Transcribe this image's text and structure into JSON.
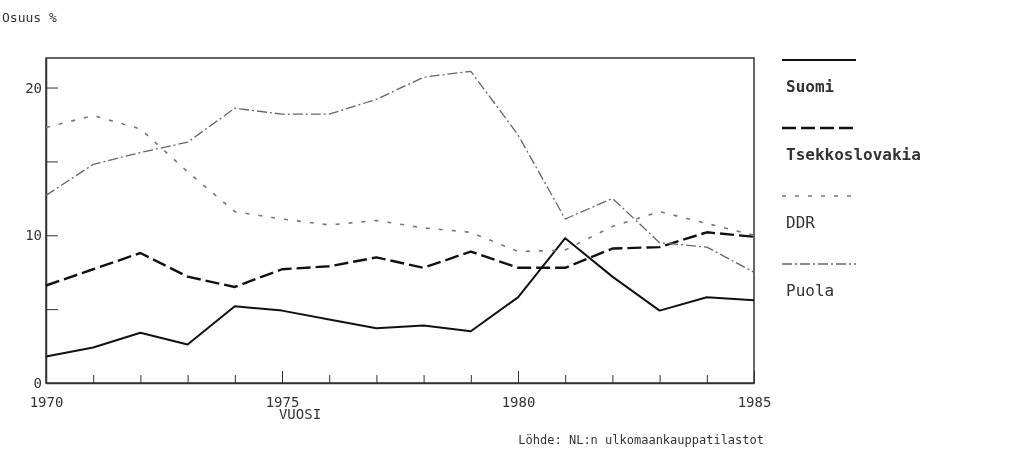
{
  "chart_data": {
    "type": "line",
    "ylabel": "Osuus %",
    "xlabel": "VUOSI",
    "annotations": [
      "Löhde: NL:n ulkomaankauppatilastot"
    ],
    "x": [
      1970,
      1971,
      1972,
      1973,
      1974,
      1975,
      1976,
      1977,
      1978,
      1979,
      1980,
      1981,
      1982,
      1983,
      1984,
      1985
    ],
    "xlim": [
      1970,
      1985
    ],
    "xticks": [
      1970,
      {
        "value": 1971,
        "label": null
      },
      {
        "value": 1972,
        "label": null
      },
      {
        "value": 1973,
        "label": null
      },
      {
        "value": 1974,
        "label": null
      },
      1975,
      {
        "value": 1976,
        "label": null
      },
      {
        "value": 1977,
        "label": null
      },
      {
        "value": 1978,
        "label": null
      },
      {
        "value": 1979,
        "label": null
      },
      1980,
      {
        "value": 1981,
        "label": null
      },
      {
        "value": 1982,
        "label": null
      },
      {
        "value": 1983,
        "label": null
      },
      {
        "value": 1984,
        "label": null
      },
      1985
    ],
    "ylim": [
      0,
      22
    ],
    "yticks": [
      0,
      {
        "value": 5,
        "label": null
      },
      10,
      {
        "value": 15,
        "label": null
      },
      20
    ],
    "legend": "right",
    "grid": false,
    "marker": "none",
    "series": [
      {
        "name": "Suomi",
        "color": "#111111",
        "line_style": "solid",
        "values": [
          1.8,
          2.4,
          3.4,
          2.6,
          5.2,
          4.9,
          4.3,
          3.7,
          3.9,
          3.5,
          5.8,
          9.8,
          7.2,
          4.9,
          5.8,
          5.6
        ]
      },
      {
        "name": "Tsekkoslovakia",
        "color": "#111111",
        "line_style": "dashed",
        "values": [
          6.6,
          7.7,
          8.8,
          7.2,
          6.5,
          7.7,
          7.9,
          8.5,
          7.8,
          8.9,
          7.8,
          7.8,
          9.1,
          9.2,
          10.2,
          9.9
        ]
      },
      {
        "name": "DDR",
        "color": "#777777",
        "line_style": "dotted",
        "values": [
          17.3,
          18.1,
          17.2,
          14.3,
          11.6,
          11.1,
          10.7,
          11.0,
          10.5,
          10.2,
          8.9,
          9.0,
          10.6,
          11.6,
          10.8,
          10.0
        ]
      },
      {
        "name": "Puola",
        "color": "#666666",
        "line_style": "dashdot",
        "values": [
          12.7,
          14.8,
          15.6,
          16.3,
          18.6,
          18.2,
          18.2,
          19.2,
          20.7,
          21.1,
          16.8,
          11.1,
          12.5,
          9.5,
          9.2,
          7.5
        ]
      }
    ]
  }
}
